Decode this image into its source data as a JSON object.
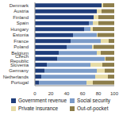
{
  "chart_data": {
    "type": "bar",
    "orientation": "horizontal",
    "stacked": true,
    "grid": false,
    "legend": "bottom",
    "categories": [
      "Denmark",
      "Austria",
      "Finland",
      "Spain",
      "Hungary",
      "Estonia",
      "France",
      "Poland",
      "Belgium",
      "Czech Republic",
      "Slovenia",
      "Germany",
      "Netherlands",
      "Portugal"
    ],
    "series": [
      {
        "name": "Government revenue",
        "color": "#1f3d7a",
        "values": [
          84,
          78,
          74,
          68,
          62,
          48,
          45,
          40,
          30,
          28,
          15,
          12,
          8,
          5
        ]
      },
      {
        "name": "Social security",
        "color": "#7b9bc8",
        "values": [
          0,
          0,
          0,
          5,
          8,
          30,
          38,
          32,
          48,
          60,
          55,
          66,
          68,
          60
        ]
      },
      {
        "name": "Private insurance",
        "color": "#e6dba6",
        "values": [
          2,
          6,
          6,
          7,
          3,
          1,
          10,
          2,
          5,
          1,
          15,
          10,
          16,
          8
        ]
      },
      {
        "name": "Out-of-pocket",
        "color": "#8c7d4a",
        "values": [
          14,
          16,
          20,
          20,
          27,
          21,
          7,
          26,
          17,
          11,
          15,
          12,
          8,
          27
        ]
      }
    ],
    "xlim": [
      0,
      100
    ],
    "xticks": [
      0,
      20,
      40,
      60,
      80,
      100
    ]
  }
}
